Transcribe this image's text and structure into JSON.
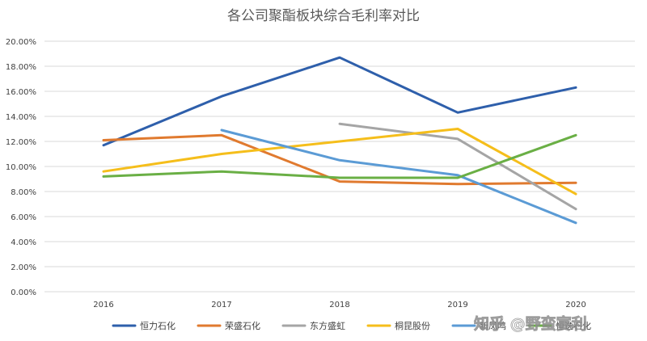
{
  "chart_data": {
    "type": "line",
    "title": "各公司聚酯板块综合毛利率对比",
    "x": [
      "2016",
      "2017",
      "2018",
      "2019",
      "2020"
    ],
    "y_ticks": [
      "0.00%",
      "2.00%",
      "4.00%",
      "6.00%",
      "8.00%",
      "10.00%",
      "12.00%",
      "14.00%",
      "16.00%",
      "18.00%",
      "20.00%"
    ],
    "ylim": [
      0,
      20
    ],
    "grid": true,
    "legend_position": "bottom",
    "series": [
      {
        "name": "恒力石化",
        "color": "#2E5FAB",
        "values": [
          11.7,
          15.6,
          18.7,
          14.3,
          16.3
        ]
      },
      {
        "name": "荣盛石化",
        "color": "#E07A2F",
        "values": [
          12.1,
          12.5,
          8.8,
          8.6,
          8.7
        ]
      },
      {
        "name": "东方盛虹",
        "color": "#A5A5A5",
        "values": [
          null,
          null,
          13.4,
          12.2,
          6.6
        ]
      },
      {
        "name": "桐昆股份",
        "color": "#F5BE1B",
        "values": [
          9.6,
          11.0,
          12.0,
          13.0,
          7.8
        ]
      },
      {
        "name": "新凤鸣",
        "color": "#5B9BD5",
        "values": [
          null,
          12.9,
          10.5,
          9.3,
          5.5
        ]
      },
      {
        "name": "恒逸石化",
        "color": "#6AAF45",
        "values": [
          9.2,
          9.6,
          9.1,
          9.1,
          12.5
        ]
      }
    ]
  },
  "watermark": {
    "text": "知乎 @野蛮宴利"
  }
}
